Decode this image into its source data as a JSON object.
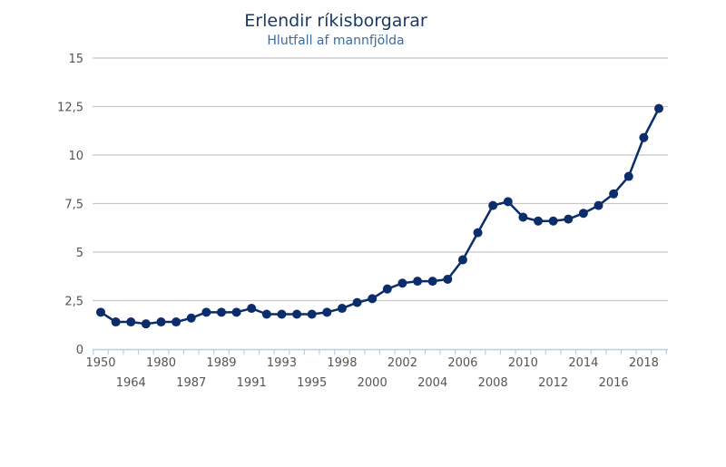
{
  "chart_data": {
    "type": "line",
    "title": "Erlendir ríkisborgarar",
    "subtitle": "Hlutfall af mannfjölda",
    "xlabel": "",
    "ylabel": "",
    "ylim": [
      0,
      15
    ],
    "yticks": [
      "0",
      "2,5",
      "5",
      "7,5",
      "10",
      "12,5",
      "15"
    ],
    "ytick_values": [
      0,
      2.5,
      5,
      7.5,
      10,
      12.5,
      15
    ],
    "grid": true,
    "legend": "none",
    "categories": [
      "1950",
      "",
      "1964",
      "",
      "1980",
      "",
      "1987",
      "",
      "1989",
      "",
      "1991",
      "",
      "1993",
      "",
      "1995",
      "",
      "1998",
      "",
      "2000",
      "",
      "2002",
      "",
      "2004",
      "",
      "2006",
      "",
      "2008",
      "",
      "2010",
      "",
      "2012",
      "",
      "2014",
      "",
      "2016",
      "",
      "2018",
      ""
    ],
    "series": [
      {
        "values": [
          1.9,
          1.4,
          1.4,
          1.3,
          1.4,
          1.4,
          1.6,
          1.9,
          1.9,
          1.9,
          2.1,
          1.8,
          1.8,
          1.8,
          1.8,
          1.9,
          2.1,
          2.4,
          2.6,
          3.1,
          3.4,
          3.5,
          3.5,
          3.6,
          4.6,
          6.0,
          7.4,
          7.6,
          6.8,
          6.6,
          6.6,
          6.7,
          7.0,
          7.4,
          8.0,
          8.9,
          10.9,
          12.4
        ]
      }
    ],
    "colors": {
      "line": "#0b2d6b",
      "grid": "#c8c8c8",
      "axis": "#b8cce4",
      "title": "#1b3a66",
      "subtitle": "#3d6aa0"
    }
  }
}
